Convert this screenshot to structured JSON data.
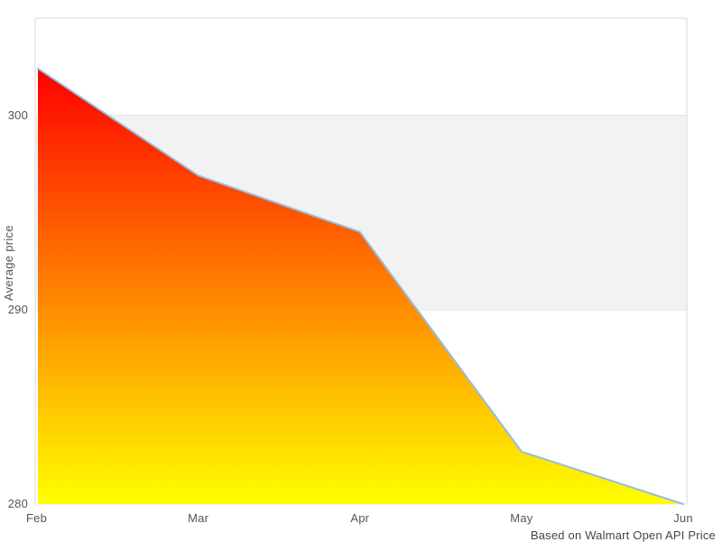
{
  "chart": {
    "caption": "Based on Walmart Open API Price"
  },
  "chart_data": {
    "type": "area",
    "title": "",
    "categories": [
      "Feb",
      "Mar",
      "Apr",
      "May",
      "Jun"
    ],
    "values": [
      302.4,
      296.9,
      294.0,
      282.7,
      280.0
    ],
    "xlabel": "",
    "ylabel": "Average price",
    "ylim": [
      280,
      305
    ],
    "yticks": [
      280,
      290,
      300
    ],
    "bands": [
      {
        "from": 290,
        "to": 300,
        "color": "#f2f2f2"
      }
    ],
    "grid": "alternating-horizontal-bands",
    "legend": "none",
    "colors": {
      "gradient_top": "#ff0000",
      "gradient_bottom": "#ffff00",
      "line": "#94bede",
      "axis": "#d8d8d8",
      "gridline": "#e7e7e7",
      "tick_text": "#555555",
      "caption_text": "#454545"
    }
  }
}
